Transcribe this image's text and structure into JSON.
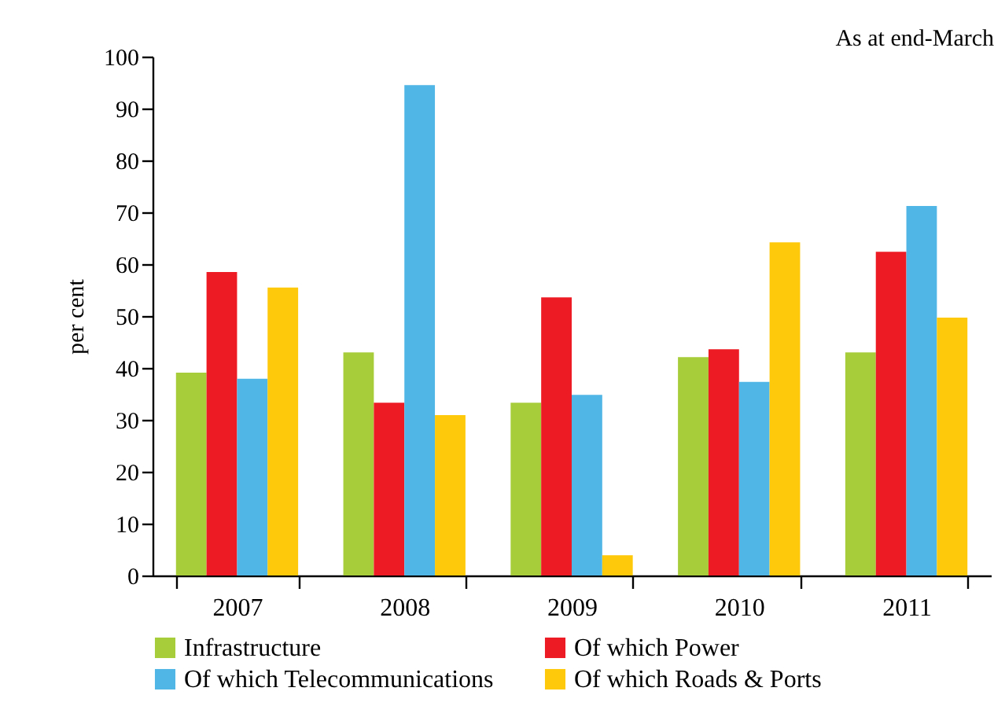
{
  "chart_data": {
    "type": "bar",
    "ylabel": "per cent",
    "annotations": [
      "As at end-March"
    ],
    "categories": [
      "2007",
      "2008",
      "2009",
      "2010",
      "2011"
    ],
    "series": [
      {
        "name": "Infrastructure",
        "color": "#a8cd3a",
        "values": [
          39.1,
          43.0,
          33.3,
          42.1,
          43.0
        ]
      },
      {
        "name": "Of which Power",
        "color": "#ed1c24",
        "values": [
          58.5,
          33.3,
          53.6,
          43.6,
          62.4
        ]
      },
      {
        "name": "Of which Telecommunications",
        "color": "#50b6e6",
        "values": [
          37.9,
          94.5,
          34.8,
          37.3,
          71.2
        ]
      },
      {
        "name": "Of which Roads & Ports",
        "color": "#ffc90b",
        "values": [
          55.5,
          30.9,
          3.9,
          64.2,
          49.7
        ]
      }
    ],
    "ylim": [
      0,
      100
    ],
    "yticks": [
      0,
      10,
      20,
      30,
      40,
      50,
      60,
      70,
      80,
      90,
      100
    ],
    "grid": false,
    "legend": "bottom"
  }
}
